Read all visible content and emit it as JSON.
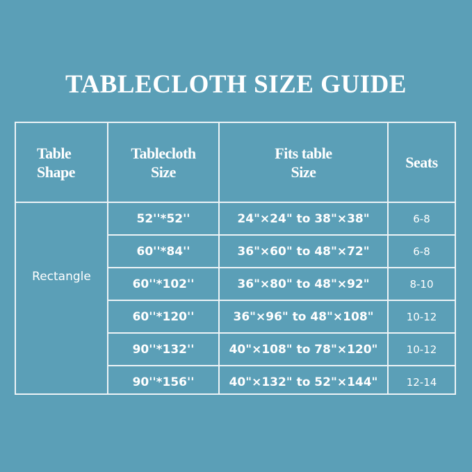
{
  "title": "TABLECLOTH SIZE GUIDE",
  "colors": {
    "background": "#5b9fb7",
    "lines": "#eef4f7",
    "text": "#ffffff"
  },
  "table": {
    "headers": [
      "Table Shape",
      "Tablecloth Size",
      "Fits table Size",
      "Seats"
    ],
    "shape": "Rectangle",
    "rows": [
      {
        "size": "52''*52''",
        "fits": "24\"×24\" to 38\"×38\"",
        "seats": "6-8"
      },
      {
        "size": "60''*84''",
        "fits": "36\"×60\" to 48\"×72\"",
        "seats": "6-8"
      },
      {
        "size": "60''*102''",
        "fits": "36\"×80\" to 48\"×92\"",
        "seats": "8-10"
      },
      {
        "size": "60''*120''",
        "fits": "36\"×96\" to 48\"×108\"",
        "seats": "10-12"
      },
      {
        "size": "90''*132''",
        "fits": "40\"×108\" to 78\"×120\"",
        "seats": "10-12"
      },
      {
        "size": "90''*156''",
        "fits": "40\"×132\" to 52\"×144\"",
        "seats": "12-14"
      }
    ]
  }
}
